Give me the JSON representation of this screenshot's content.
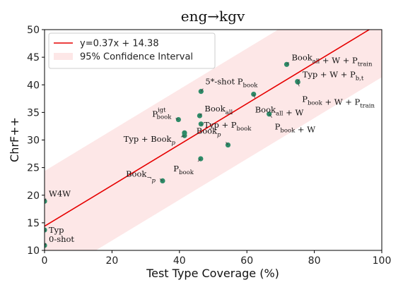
{
  "chart_data": {
    "type": "scatter",
    "title": "eng→kgv",
    "xlabel": "Test Type Coverage (%)",
    "ylabel": "ChrF++",
    "xlim": [
      0,
      100
    ],
    "ylim": [
      10,
      50
    ],
    "xticks": [
      0,
      20,
      40,
      60,
      80,
      100
    ],
    "yticks": [
      10,
      15,
      20,
      25,
      30,
      35,
      40,
      45,
      50
    ],
    "grid": false,
    "legend_position": "top-left",
    "fit": {
      "slope": 0.37,
      "intercept": 14.38,
      "label": "y=0.37x + 14.38",
      "color": "#e60000"
    },
    "confidence_band": {
      "label": "95% Confidence Interval",
      "halfwidth": 10,
      "color": "#fde7e7"
    },
    "point_color": "#2e8b68",
    "points": [
      {
        "x": 0,
        "y": 10.9,
        "label": "0-shot"
      },
      {
        "x": 0,
        "y": 13.7,
        "label": "Typ"
      },
      {
        "x": 0,
        "y": 18.9,
        "label": "W4W"
      },
      {
        "x": 35.0,
        "y": 22.6,
        "label": "Book¬p"
      },
      {
        "x": 46.3,
        "y": 26.6,
        "label": "Pbook"
      },
      {
        "x": 54.4,
        "y": 29.1,
        "label": "Bookp"
      },
      {
        "x": 41.5,
        "y": 30.8,
        "label": "Typ + Bookp"
      },
      {
        "x": 41.5,
        "y": 31.3,
        "label": ""
      },
      {
        "x": 46.4,
        "y": 32.9,
        "label": "Typ + Pbook"
      },
      {
        "x": 39.7,
        "y": 33.7,
        "label": "Pbook igt"
      },
      {
        "x": 46.0,
        "y": 34.4,
        "label": "Bookall"
      },
      {
        "x": 66.6,
        "y": 34.7,
        "label": "Pbook + W"
      },
      {
        "x": 62.0,
        "y": 38.3,
        "label": "Bookall + W"
      },
      {
        "x": 46.4,
        "y": 38.8,
        "label": "5*-shot Pbook"
      },
      {
        "x": 75.0,
        "y": 40.6,
        "label": "Typ + W + Pb,t"
      },
      {
        "x": 75.1,
        "y": 40.5,
        "label": "Pbook + W + Ptrain"
      },
      {
        "x": 71.8,
        "y": 43.7,
        "label": "Bookall + W + Ptrain"
      }
    ]
  }
}
